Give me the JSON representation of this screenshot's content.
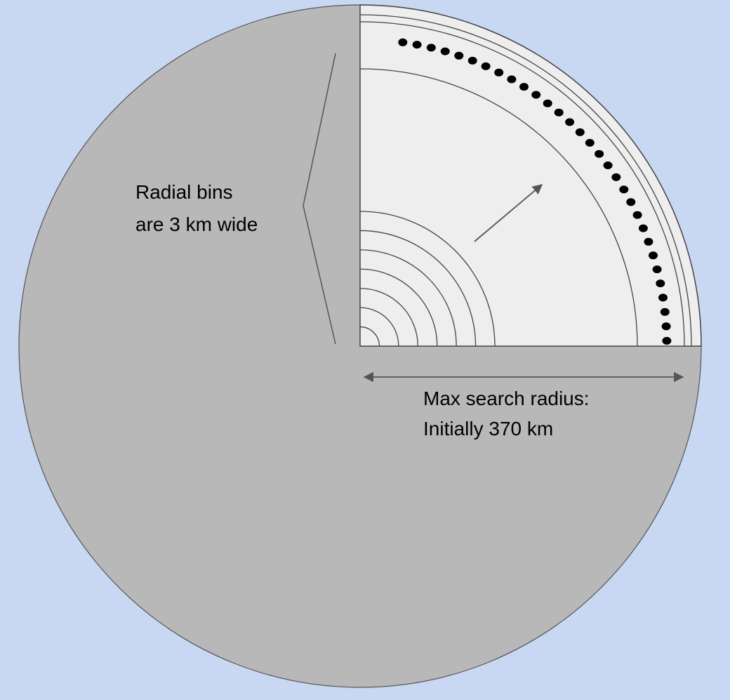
{
  "labels": {
    "bins_line1": "Radial bins",
    "bins_line2": "are 3 km wide",
    "radius_line1": "Max search radius:",
    "radius_line2": "Initially 370 km"
  },
  "colors": {
    "background": "#c9d8f2",
    "disk": "#b8b8b8",
    "quadrant": "#eeeeee",
    "ring_line": "#444444",
    "dot": "#000000",
    "arrow": "#555555"
  },
  "diagram": {
    "inner_ring_count": 7,
    "outer_ring_count": 3,
    "dot_count": 31
  }
}
